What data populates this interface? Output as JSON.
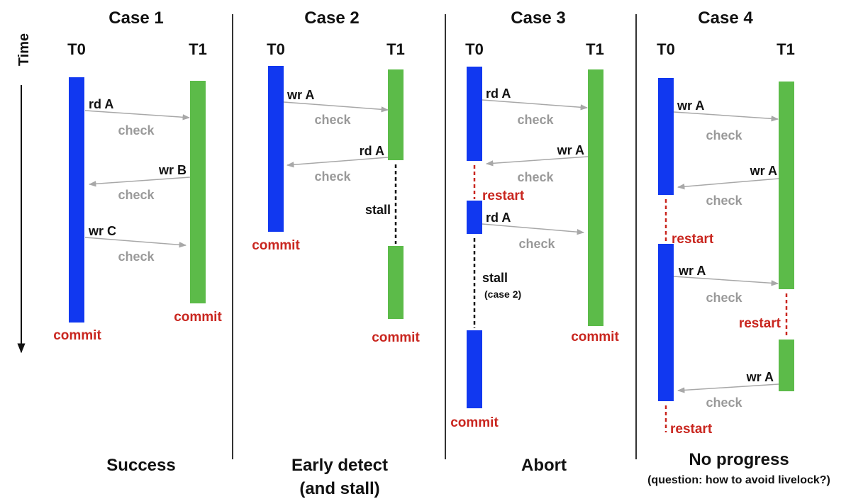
{
  "time_label": "Time",
  "colors": {
    "t0": "#1138f0",
    "t1": "#5cbb49",
    "commit": "#c9261f",
    "check": "#9a9a9a",
    "arrow": "#a8a8a8",
    "divider": "#333333"
  },
  "cases": [
    {
      "title": "Case 1",
      "t0_label": "T0",
      "t1_label": "T1",
      "ops": [
        "rd A",
        "wr B",
        "wr C"
      ],
      "checks": [
        "check",
        "check",
        "check"
      ],
      "t0_end": "commit",
      "t1_end": "commit",
      "caption": "Success"
    },
    {
      "title": "Case 2",
      "t0_label": "T0",
      "t1_label": "T1",
      "ops": [
        "wr A",
        "rd A"
      ],
      "checks": [
        "check",
        "check"
      ],
      "stall": "stall",
      "t0_end": "commit",
      "t1_end": "commit",
      "caption": "Early detect",
      "caption2": "(and stall)"
    },
    {
      "title": "Case 3",
      "t0_label": "T0",
      "t1_label": "T1",
      "ops": [
        "rd A",
        "wr A",
        "rd A"
      ],
      "checks": [
        "check",
        "check",
        "check"
      ],
      "restart": "restart",
      "stall": "stall",
      "stall_note": "(case 2)",
      "t0_end": "commit",
      "t1_end": "commit",
      "caption": "Abort"
    },
    {
      "title": "Case 4",
      "t0_label": "T0",
      "t1_label": "T1",
      "ops": [
        "wr A",
        "wr A",
        "wr A",
        "wr A"
      ],
      "checks": [
        "check",
        "check",
        "check",
        "check"
      ],
      "restarts": [
        "restart",
        "restart",
        "restart"
      ],
      "caption": "No progress",
      "caption2": "(question: how to avoid livelock?)"
    }
  ]
}
